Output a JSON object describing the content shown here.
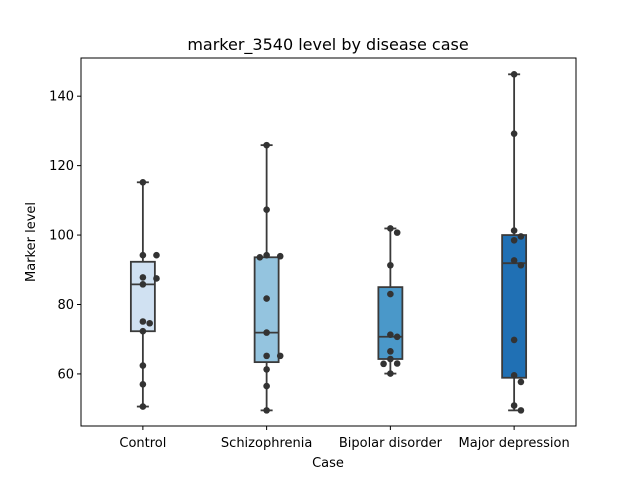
{
  "chart_data": {
    "type": "box",
    "title": "marker_3540 level by disease case",
    "xlabel": "Case",
    "ylabel": "Marker level",
    "ylim": [
      45,
      151
    ],
    "yticks": [
      60,
      80,
      100,
      120,
      140
    ],
    "grid": false,
    "categories": [
      "Control",
      "Schizophrenia",
      "Bipolar disorder",
      "Major depression"
    ],
    "colors": [
      "#d0e1f2",
      "#94c4df",
      "#4a98c9",
      "#2070b4"
    ],
    "boxes": [
      {
        "q1": 72.3,
        "median": 85.8,
        "q3": 92.3,
        "whisker_low": 50.6,
        "whisker_high": 115.2
      },
      {
        "q1": 63.4,
        "median": 71.9,
        "q3": 93.6,
        "whisker_low": 49.5,
        "whisker_high": 125.9
      },
      {
        "q1": 64.3,
        "median": 70.7,
        "q3": 85.0,
        "whisker_low": 60.1,
        "whisker_high": 101.9
      },
      {
        "q1": 58.9,
        "median": 91.9,
        "q3": 100.0,
        "whisker_low": 49.5,
        "whisker_high": 146.3
      }
    ],
    "points": [
      [
        115.2,
        94.2,
        94.2,
        87.8,
        87.5,
        85.8,
        75.1,
        74.6,
        72.3,
        62.4,
        57.0,
        50.6
      ],
      [
        125.9,
        107.3,
        94.2,
        93.9,
        93.6,
        81.7,
        71.9,
        65.2,
        65.2,
        61.3,
        56.5,
        49.5
      ],
      [
        101.9,
        100.7,
        91.3,
        83.0,
        71.3,
        70.7,
        66.5,
        64.3,
        63.0,
        62.9,
        60.1
      ],
      [
        146.3,
        129.2,
        101.3,
        99.6,
        98.5,
        92.7,
        91.3,
        69.8,
        59.6,
        57.7,
        50.9,
        49.5
      ]
    ]
  }
}
